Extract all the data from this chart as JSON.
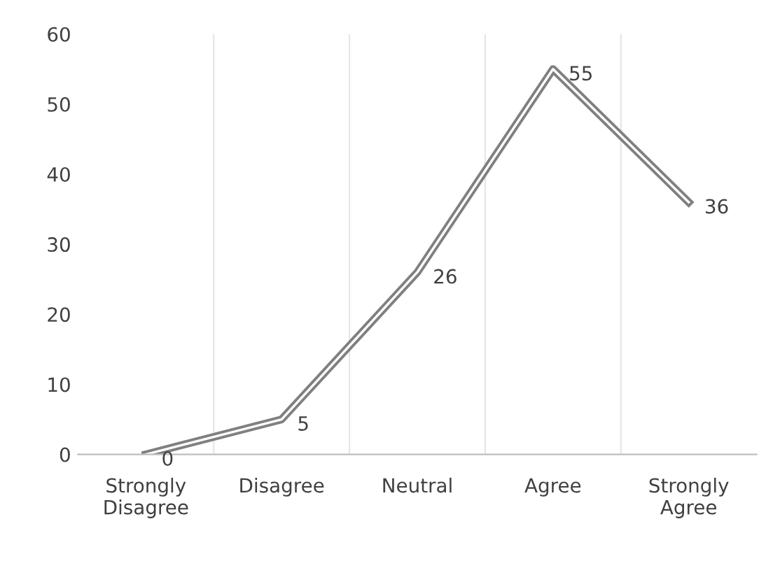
{
  "chart_data": {
    "type": "line",
    "categories": [
      "Strongly\nDisagree",
      "Disagree",
      "Neutral",
      "Agree",
      "Strongly\nAgree"
    ],
    "series": [
      {
        "color": "#808080",
        "values": [
          0,
          5,
          26,
          55,
          36
        ]
      }
    ],
    "ylim": [
      0,
      60
    ],
    "yticks": [
      0,
      10,
      20,
      30,
      40,
      50,
      60
    ],
    "grid": "x",
    "data_labels": true,
    "marker": "none",
    "line_style": "solid",
    "legend": false
  }
}
